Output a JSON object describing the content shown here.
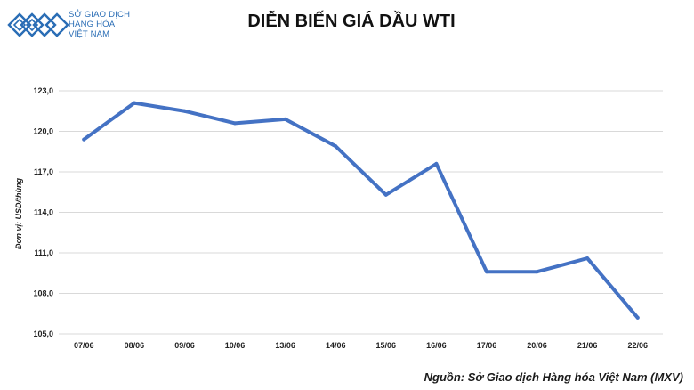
{
  "header": {
    "logo_lines": [
      "SỞ GIAO DỊCH",
      "HÀNG HÓA",
      "VIỆT NAM"
    ],
    "brand_color": "#2a6db5"
  },
  "chart_data": {
    "type": "line",
    "title": "DIỄN BIẾN GIÁ DẦU WTI",
    "ylabel": "Đơn vị: USD/thùng",
    "xlabel": "",
    "categories": [
      "07/06",
      "08/06",
      "09/06",
      "10/06",
      "13/06",
      "14/06",
      "15/06",
      "16/06",
      "17/06",
      "20/06",
      "21/06",
      "22/06"
    ],
    "series": [
      {
        "values": [
          119.4,
          122.1,
          121.5,
          120.6,
          120.9,
          118.9,
          115.3,
          117.6,
          109.6,
          109.6,
          110.6,
          106.2
        ],
        "color": "#4472c4"
      }
    ],
    "ylim": [
      105,
      123
    ],
    "yticks": [
      "105,0",
      "108,0",
      "111,0",
      "114,0",
      "117,0",
      "120,0",
      "123,0"
    ],
    "grid": true,
    "legend": "none"
  },
  "source": "Nguồn: Sở Giao dịch Hàng hóa Việt Nam (MXV)"
}
